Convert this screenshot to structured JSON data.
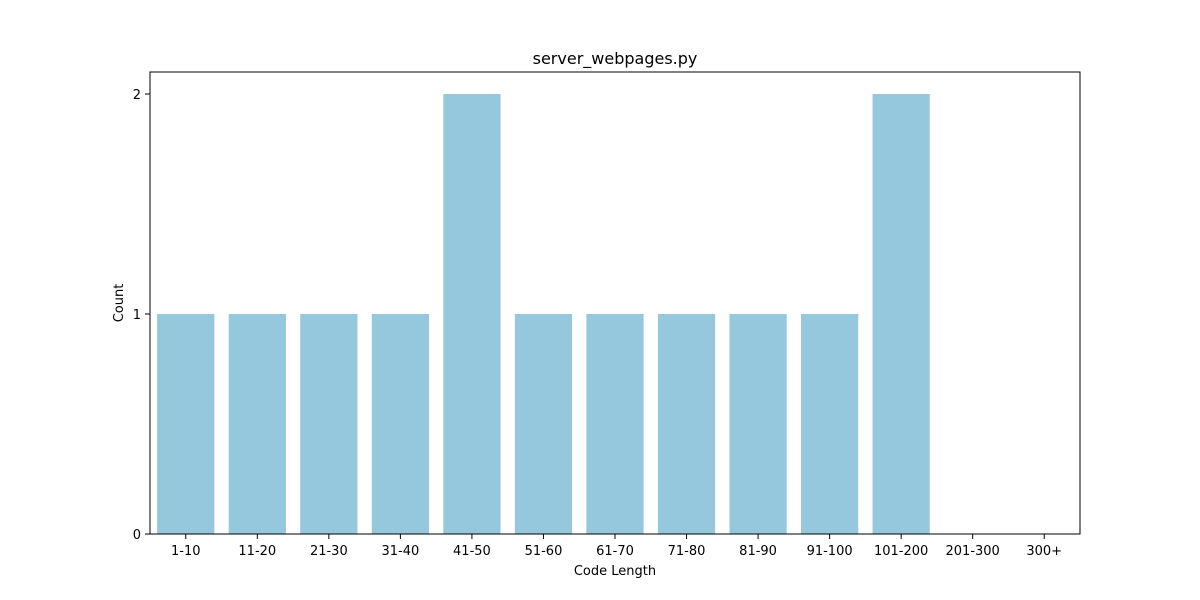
{
  "chart_data": {
    "type": "bar",
    "title": "server_webpages.py",
    "xlabel": "Code Length",
    "ylabel": "Count",
    "categories": [
      "1-10",
      "11-20",
      "21-30",
      "31-40",
      "41-50",
      "51-60",
      "61-70",
      "71-80",
      "81-90",
      "91-100",
      "101-200",
      "201-300",
      "300+"
    ],
    "values": [
      1,
      1,
      1,
      1,
      2,
      1,
      1,
      1,
      1,
      1,
      2,
      0,
      0
    ],
    "ylim": [
      0,
      2.1
    ],
    "yticks": [
      0,
      1,
      2
    ],
    "grid": false,
    "legend": "none",
    "bar_color": "#95c8dd"
  }
}
